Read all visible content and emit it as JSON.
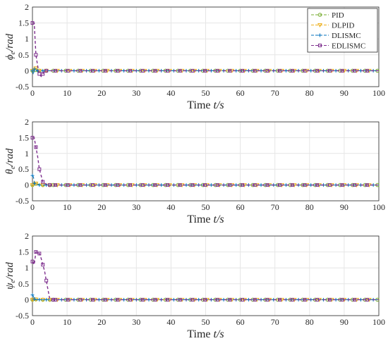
{
  "legend": {
    "placement": "top-right",
    "entries": [
      {
        "name": "PID",
        "color": "#77AC30",
        "marker": "circle"
      },
      {
        "name": "DLPID",
        "color": "#EDB120",
        "marker": "triangle-down"
      },
      {
        "name": "DLISMC",
        "color": "#0072BD",
        "marker": "plus"
      },
      {
        "name": "EDLISMC",
        "color": "#7E2F8E",
        "marker": "square"
      }
    ]
  },
  "chart_data": [
    {
      "type": "line",
      "ylabel": "ϕ_e/rad",
      "ylabel_main": "ϕ",
      "ylabel_sub": "e",
      "ylabel_rest": "/rad",
      "xlabel": "Time t/s",
      "xlabel_main": "Time ",
      "xlabel_italic": "t/s",
      "xlim": [
        0,
        100
      ],
      "ylim": [
        -0.5,
        2
      ],
      "xticks": [
        "0",
        "10",
        "20",
        "30",
        "40",
        "50",
        "60",
        "70",
        "80",
        "90",
        "100"
      ],
      "yticks": [
        "2",
        "1.5",
        "1",
        "0.5",
        "0",
        "-0.5"
      ],
      "grid": true,
      "series": [
        {
          "name": "PID",
          "x": [
            0,
            0.5,
            1,
            1.5,
            2,
            3,
            4,
            5
          ],
          "y": [
            0,
            0.05,
            0.02,
            -0.03,
            0,
            0,
            0,
            0
          ]
        },
        {
          "name": "DLPID",
          "x": [
            0,
            0.5,
            1,
            1.5,
            2,
            3,
            4,
            5
          ],
          "y": [
            0,
            0.12,
            0.08,
            -0.02,
            0,
            0,
            0,
            0
          ]
        },
        {
          "name": "DLISMC",
          "x": [
            0,
            0.3,
            0.6,
            1,
            1.5,
            2,
            3,
            4
          ],
          "y": [
            0,
            -0.12,
            0.05,
            0.02,
            0,
            0,
            0,
            0
          ]
        },
        {
          "name": "EDLISMC",
          "x": [
            0,
            0.5,
            1,
            1.5,
            2,
            2.5,
            3,
            3.5,
            4,
            5
          ],
          "y": [
            1.5,
            1.5,
            0.5,
            0.15,
            -0.1,
            -0.18,
            -0.1,
            0.02,
            0,
            0
          ]
        }
      ]
    },
    {
      "type": "line",
      "ylabel": "θ_e/rad",
      "ylabel_main": "θ",
      "ylabel_sub": "e",
      "ylabel_rest": "/rad",
      "xlabel": "Time t/s",
      "xlabel_main": "Time ",
      "xlabel_italic": "t/s",
      "xlim": [
        0,
        100
      ],
      "ylim": [
        -0.5,
        2
      ],
      "xticks": [
        "0",
        "10",
        "20",
        "30",
        "40",
        "50",
        "60",
        "70",
        "80",
        "90",
        "100"
      ],
      "yticks": [
        "2",
        "1.5",
        "1",
        "0.5",
        "0",
        "-0.5"
      ],
      "grid": true,
      "series": [
        {
          "name": "PID",
          "x": [
            0,
            0.5,
            1,
            2,
            3,
            4,
            5
          ],
          "y": [
            0,
            0.08,
            0.04,
            0.02,
            0,
            0,
            0
          ]
        },
        {
          "name": "DLPID",
          "x": [
            0,
            0.5,
            1,
            2,
            3,
            4,
            5
          ],
          "y": [
            0,
            0.12,
            0.05,
            0.02,
            0,
            0,
            0
          ]
        },
        {
          "name": "DLISMC",
          "x": [
            0,
            0.3,
            0.6,
            1,
            2,
            3,
            4
          ],
          "y": [
            0.3,
            0.25,
            0.05,
            0.02,
            0,
            0,
            0
          ]
        },
        {
          "name": "EDLISMC",
          "x": [
            0,
            0.5,
            1,
            1.5,
            2,
            2.5,
            3,
            4,
            5,
            6
          ],
          "y": [
            1.5,
            1.5,
            1.2,
            0.9,
            0.5,
            0.3,
            0.1,
            0.02,
            0,
            0
          ]
        }
      ]
    },
    {
      "type": "line",
      "ylabel": "ψ_e/rad",
      "ylabel_main": "ψ",
      "ylabel_sub": "e",
      "ylabel_rest": "/rad",
      "xlabel": "Time t/s",
      "xlabel_main": "Time ",
      "xlabel_italic": "t/s",
      "xlim": [
        0,
        100
      ],
      "ylim": [
        -0.5,
        2
      ],
      "xticks": [
        "0",
        "10",
        "20",
        "30",
        "40",
        "50",
        "60",
        "70",
        "80",
        "90",
        "100"
      ],
      "yticks": [
        "2",
        "1.5",
        "1",
        "0.5",
        "0",
        "-0.5"
      ],
      "grid": true,
      "series": [
        {
          "name": "PID",
          "x": [
            0,
            0.5,
            1,
            2,
            3,
            4,
            5
          ],
          "y": [
            0,
            0.02,
            0.01,
            0,
            0,
            0,
            0
          ]
        },
        {
          "name": "DLPID",
          "x": [
            0,
            0.5,
            1,
            2,
            3,
            4,
            5
          ],
          "y": [
            0,
            0.03,
            0.01,
            0,
            0,
            0,
            0
          ]
        },
        {
          "name": "DLISMC",
          "x": [
            0,
            0.3,
            0.6,
            1,
            2,
            3,
            4
          ],
          "y": [
            0.15,
            0.1,
            0.02,
            0,
            0,
            0,
            0
          ]
        },
        {
          "name": "EDLISMC",
          "x": [
            0,
            0.5,
            1,
            1.5,
            2,
            2.5,
            3,
            3.5,
            4,
            5,
            6
          ],
          "y": [
            1.2,
            1.1,
            1.5,
            1.5,
            1.45,
            1.3,
            1.1,
            0.9,
            0.6,
            0.02,
            0
          ]
        }
      ]
    }
  ]
}
